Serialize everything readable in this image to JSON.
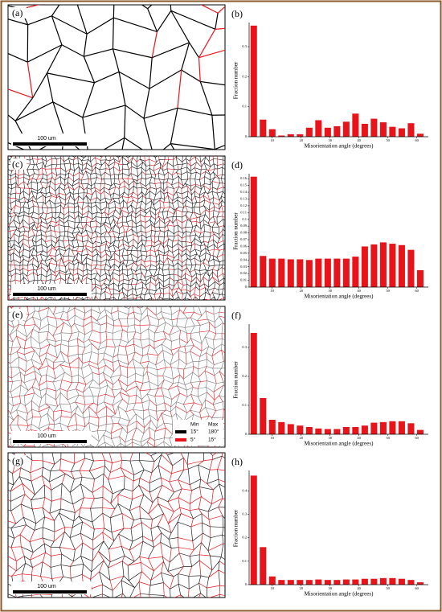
{
  "panels": [
    {
      "label": "(a)",
      "scale_bar": "100 um"
    },
    {
      "label": "(c)",
      "scale_bar": "100 um"
    },
    {
      "label": "(e)",
      "scale_bar": "100 um"
    },
    {
      "label": "(g)",
      "scale_bar": "100 um"
    }
  ],
  "legend": {
    "header": [
      "Min",
      "Max"
    ],
    "rows": [
      [
        "15°",
        "180°"
      ],
      [
        "5°",
        "15°"
      ]
    ],
    "colors": [
      "#000000",
      "#e8141a"
    ]
  },
  "chart_data": [
    {
      "type": "histogram",
      "panel_label": "(b)",
      "xlabel": "Misorientation angle (degrees)",
      "ylabel": "Fraction number",
      "color": "#e8141a",
      "bins": [
        2,
        5.2,
        8.4,
        11.6,
        14.8,
        18,
        21.2,
        24.4,
        27.6,
        30.8,
        34,
        37.2,
        40.4,
        43.6,
        46.8,
        50,
        53.2,
        56.4,
        59.6,
        62.8
      ],
      "values": [
        0.37,
        0.057,
        0.025,
        0.004,
        0.008,
        0.008,
        0.03,
        0.055,
        0.03,
        0.035,
        0.05,
        0.077,
        0.043,
        0.06,
        0.048,
        0.033,
        0.028,
        0.045,
        0.01
      ],
      "xlim": [
        2,
        64
      ],
      "xticks": [
        10,
        20,
        30,
        40,
        50,
        60
      ],
      "ylim": [
        0,
        0.375
      ],
      "yticks": [
        0,
        0.1,
        0.2,
        0.3
      ]
    },
    {
      "type": "histogram",
      "panel_label": "(d)",
      "xlabel": "Misorientation angle (degrees)",
      "ylabel": "Fraction number",
      "color": "#e8141a",
      "bins": [
        2,
        5.2,
        8.4,
        11.6,
        14.8,
        18,
        21.2,
        24.4,
        27.6,
        30.8,
        34,
        37.2,
        40.4,
        43.6,
        46.8,
        50,
        53.2,
        56.4,
        59.6,
        62.8
      ],
      "values": [
        0.163,
        0.046,
        0.042,
        0.042,
        0.041,
        0.041,
        0.04,
        0.042,
        0.042,
        0.042,
        0.042,
        0.045,
        0.06,
        0.063,
        0.066,
        0.064,
        0.062,
        0.055,
        0.025
      ],
      "xlim": [
        2,
        64
      ],
      "xticks": [
        10,
        20,
        30,
        40,
        50,
        60
      ],
      "ylim": [
        0,
        0.165
      ],
      "yticks": [
        0,
        0.01,
        0.02,
        0.03,
        0.04,
        0.05,
        0.06,
        0.07,
        0.08,
        0.09,
        0.1,
        0.11,
        0.12,
        0.13,
        0.14,
        0.15,
        0.16
      ]
    },
    {
      "type": "histogram",
      "panel_label": "(f)",
      "xlabel": "Misorientation angle (degrees)",
      "ylabel": "Fraction number",
      "color": "#e8141a",
      "bins": [
        2,
        5.2,
        8.4,
        11.6,
        14.8,
        18,
        21.2,
        24.4,
        27.6,
        30.8,
        34,
        37.2,
        40.4,
        43.6,
        46.8,
        50,
        53.2,
        56.4,
        59.6,
        62.8
      ],
      "values": [
        0.35,
        0.125,
        0.05,
        0.042,
        0.035,
        0.03,
        0.025,
        0.02,
        0.018,
        0.018,
        0.025,
        0.025,
        0.03,
        0.04,
        0.042,
        0.045,
        0.045,
        0.038,
        0.015
      ],
      "xlim": [
        2,
        64
      ],
      "xticks": [
        10,
        20,
        30,
        40,
        50,
        60
      ],
      "ylim": [
        0,
        0.375
      ],
      "yticks": [
        0,
        0.1,
        0.2,
        0.3
      ]
    },
    {
      "type": "histogram",
      "panel_label": "(h)",
      "xlabel": "Misorientation angle (degrees)",
      "ylabel": "Fraction number",
      "color": "#e8141a",
      "bins": [
        2,
        5.2,
        8.4,
        11.6,
        14.8,
        18,
        21.2,
        24.4,
        27.6,
        30.8,
        34,
        37.2,
        40.4,
        43.6,
        46.8,
        50,
        53.2,
        56.4,
        59.6,
        62.8
      ],
      "values": [
        0.465,
        0.16,
        0.035,
        0.02,
        0.02,
        0.02,
        0.02,
        0.022,
        0.02,
        0.02,
        0.022,
        0.022,
        0.025,
        0.025,
        0.028,
        0.028,
        0.025,
        0.02,
        0.01
      ],
      "xlim": [
        2,
        64
      ],
      "xticks": [
        10,
        20,
        30,
        40,
        50,
        60
      ],
      "ylim": [
        0,
        0.48
      ],
      "yticks": [
        0,
        0.1,
        0.2,
        0.3,
        0.4
      ]
    }
  ]
}
